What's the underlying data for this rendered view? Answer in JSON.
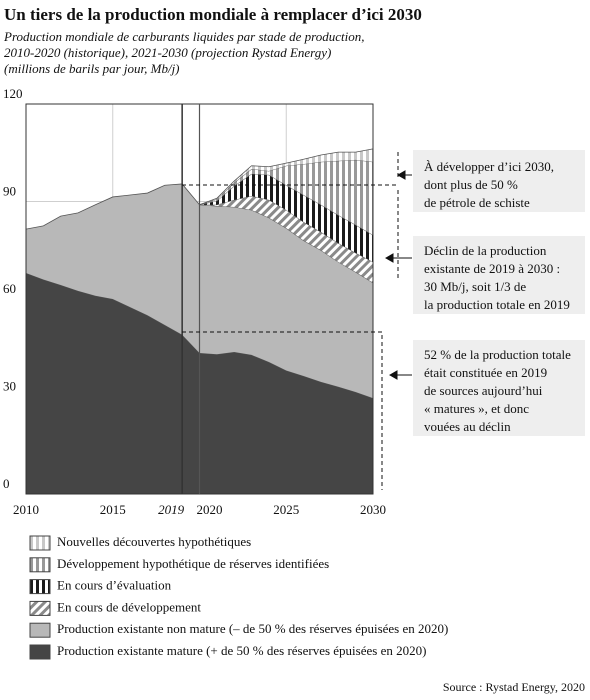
{
  "chart_data": {
    "type": "stacked-area",
    "title": "Un tiers de la production mondiale à remplacer d’ici 2030",
    "subtitle": [
      "Production mondiale de carburants liquides par stade de production,",
      "2010-2020 (historique), 2021-2030 (projection Rystad Energy)",
      "(millions de barils par jour, Mb/j)"
    ],
    "x": [
      2010,
      2011,
      2012,
      2013,
      2014,
      2015,
      2016,
      2017,
      2018,
      2019,
      2020,
      2021,
      2022,
      2023,
      2024,
      2025,
      2026,
      2027,
      2028,
      2029,
      2030
    ],
    "xlim": [
      2010,
      2030
    ],
    "xticks": [
      2010,
      2015,
      2019,
      2020,
      2025,
      2030
    ],
    "ylim": [
      0,
      120
    ],
    "yticks": [
      0,
      30,
      60,
      90,
      120
    ],
    "grid": true,
    "series": [
      {
        "name": "Production existante mature (+ de 50 % des réserves épuisées en 2020)",
        "color": "#454545",
        "pattern": "solid",
        "values": [
          68,
          66,
          64.3,
          62.5,
          61,
          60,
          57.5,
          55,
          52,
          49,
          43.4,
          43,
          43.7,
          42.8,
          40.6,
          38,
          36.3,
          34.5,
          33,
          31.4,
          29.5
        ]
      },
      {
        "name": "Production existante non mature (– de 50 % des réserves épuisées en 2020)",
        "color": "#b8b8b8",
        "pattern": "solid",
        "values": [
          13.5,
          16.5,
          21.2,
          24,
          28,
          31.4,
          34.5,
          37.6,
          43,
          46.4,
          45.6,
          45.6,
          44.6,
          44.6,
          44.4,
          43.8,
          41.7,
          40.5,
          38.4,
          36.9,
          35.5
        ]
      },
      {
        "name": "En cours de développement",
        "color": "#8a8a8a",
        "pattern": "diagonal",
        "values": [
          null,
          null,
          null,
          null,
          null,
          null,
          null,
          null,
          null,
          null,
          0,
          0.4,
          2.2,
          4.3,
          5.5,
          5.6,
          5.7,
          5.6,
          5.8,
          5.9,
          6.4
        ]
      },
      {
        "name": "En cours d’évaluation",
        "color": "#1a1a1a",
        "pattern": "vertical",
        "values": [
          null,
          null,
          null,
          null,
          null,
          null,
          null,
          null,
          null,
          null,
          0,
          1.2,
          4.3,
          6.8,
          7.7,
          7.6,
          8.3,
          8.4,
          8.6,
          8.6,
          8.3
        ]
      },
      {
        "name": "Développement hypothétique de réserves identifiées",
        "color": "#999999",
        "pattern": "vertical",
        "values": [
          null,
          null,
          null,
          null,
          null,
          null,
          null,
          null,
          null,
          null,
          0,
          0.5,
          1,
          1.5,
          1.2,
          6,
          9.5,
          13.2,
          16.7,
          20,
          22.5
        ]
      },
      {
        "name": "Nouvelles découvertes hypothétiques",
        "color": "#c8c8c8",
        "pattern": "vertical",
        "values": [
          null,
          null,
          null,
          null,
          null,
          null,
          null,
          null,
          null,
          null,
          0,
          0.3,
          0.5,
          1,
          1.3,
          0.8,
          1.5,
          2.1,
          2.7,
          2.4,
          4
        ]
      }
    ],
    "annotations": [
      [
        "À développer d’ici 2030,",
        "dont plus de 50 %",
        "de pétrole de schiste"
      ],
      [
        "Déclin de la production",
        "existante de 2019 à 2030 :",
        "30 Mb/j, soit 1/3 de",
        "la production totale en 2019"
      ],
      [
        "52 % de la production totale",
        "était constituée en 2019",
        "de sources aujourd’hui",
        "« matures », et donc",
        "vouées au déclin"
      ]
    ],
    "source": "Source : Rystad Energy, 2020"
  }
}
